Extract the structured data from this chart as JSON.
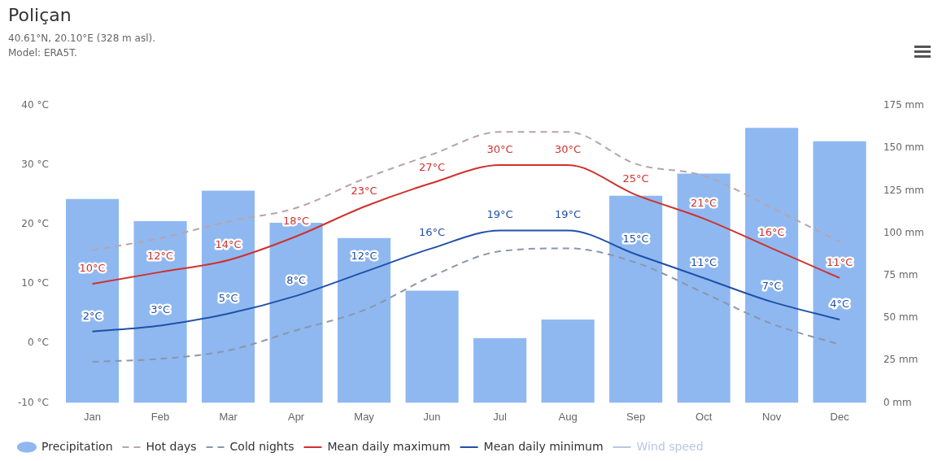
{
  "chart_data": {
    "type": "line",
    "title": "Poliçan",
    "subtitle": "40.61°N, 20.10°E (328 m asl).",
    "annotations": [
      "Model: ERA5T."
    ],
    "categories": [
      "Jan",
      "Feb",
      "Mar",
      "Apr",
      "May",
      "Jun",
      "Jul",
      "Aug",
      "Sep",
      "Oct",
      "Nov",
      "Dec"
    ],
    "ylim": [
      -10,
      40
    ],
    "yticks": [
      {
        "value": -10,
        "label": "-10 °C"
      },
      {
        "value": 0,
        "label": "0 °C"
      },
      {
        "value": 10,
        "label": "10 °C"
      },
      {
        "value": 20,
        "label": "20 °C"
      },
      {
        "value": 30,
        "label": "30 °C"
      },
      {
        "value": 40,
        "label": "40 °C"
      }
    ],
    "y2lim": [
      0,
      175
    ],
    "y2ticks": [
      {
        "value": 0,
        "label": "0 mm"
      },
      {
        "value": 25,
        "label": "25 mm"
      },
      {
        "value": 50,
        "label": "50 mm"
      },
      {
        "value": 75,
        "label": "75 mm"
      },
      {
        "value": 100,
        "label": "100 mm"
      },
      {
        "value": 125,
        "label": "125 mm"
      },
      {
        "value": 150,
        "label": "150 mm"
      },
      {
        "value": 175,
        "label": "175 mm"
      }
    ],
    "grid": false,
    "legend": "bottom",
    "marker": "none",
    "series": [
      {
        "name": "Precipitation",
        "type": "bar",
        "axis": "y2",
        "color": "#8fb8f0",
        "values": [
          120,
          107,
          125,
          106,
          97,
          66,
          38,
          49,
          122,
          135,
          162,
          154
        ]
      },
      {
        "name": "Hot days",
        "line_style": "dashed",
        "color": "#b8a4aa",
        "values": [
          15.7,
          17.7,
          20.5,
          22.8,
          27.7,
          31.8,
          35.6,
          35.6,
          30.2,
          28.2,
          22.8,
          17.1
        ]
      },
      {
        "name": "Cold nights",
        "line_style": "dashed",
        "color": "#8a96aa",
        "values": [
          -3.1,
          -2.6,
          -1.2,
          2.2,
          5.6,
          11.3,
          15.5,
          16,
          13.6,
          8.5,
          3.3,
          -0.2
        ]
      },
      {
        "name": "Mean daily maximum",
        "line_style": "solid",
        "color": "#d0312d",
        "data_labels": true,
        "value_labels": [
          "10°C",
          "12°C",
          "14°C",
          "18°C",
          "23°C",
          "27°C",
          "30°C",
          "30°C",
          "25°C",
          "21°C",
          "16°C",
          "11°C"
        ],
        "values": [
          10,
          12,
          14,
          18,
          23,
          27,
          30,
          30,
          25,
          21,
          16,
          11
        ]
      },
      {
        "name": "Mean daily minimum",
        "line_style": "solid",
        "color": "#2050a8",
        "data_labels": true,
        "value_labels": [
          "2°C",
          "3°C",
          "5°C",
          "8°C",
          "12°C",
          "16°C",
          "19°C",
          "19°C",
          "15°C",
          "11°C",
          "7°C",
          "4°C"
        ],
        "values": [
          2,
          3,
          5,
          8,
          12,
          16,
          19,
          19,
          15,
          11,
          7,
          4
        ]
      },
      {
        "name": "Wind speed",
        "line_style": "solid",
        "color": "#b8c8e0",
        "values": [
          null,
          null,
          null,
          null,
          null,
          null,
          null,
          null,
          null,
          null,
          null,
          null
        ]
      }
    ]
  }
}
